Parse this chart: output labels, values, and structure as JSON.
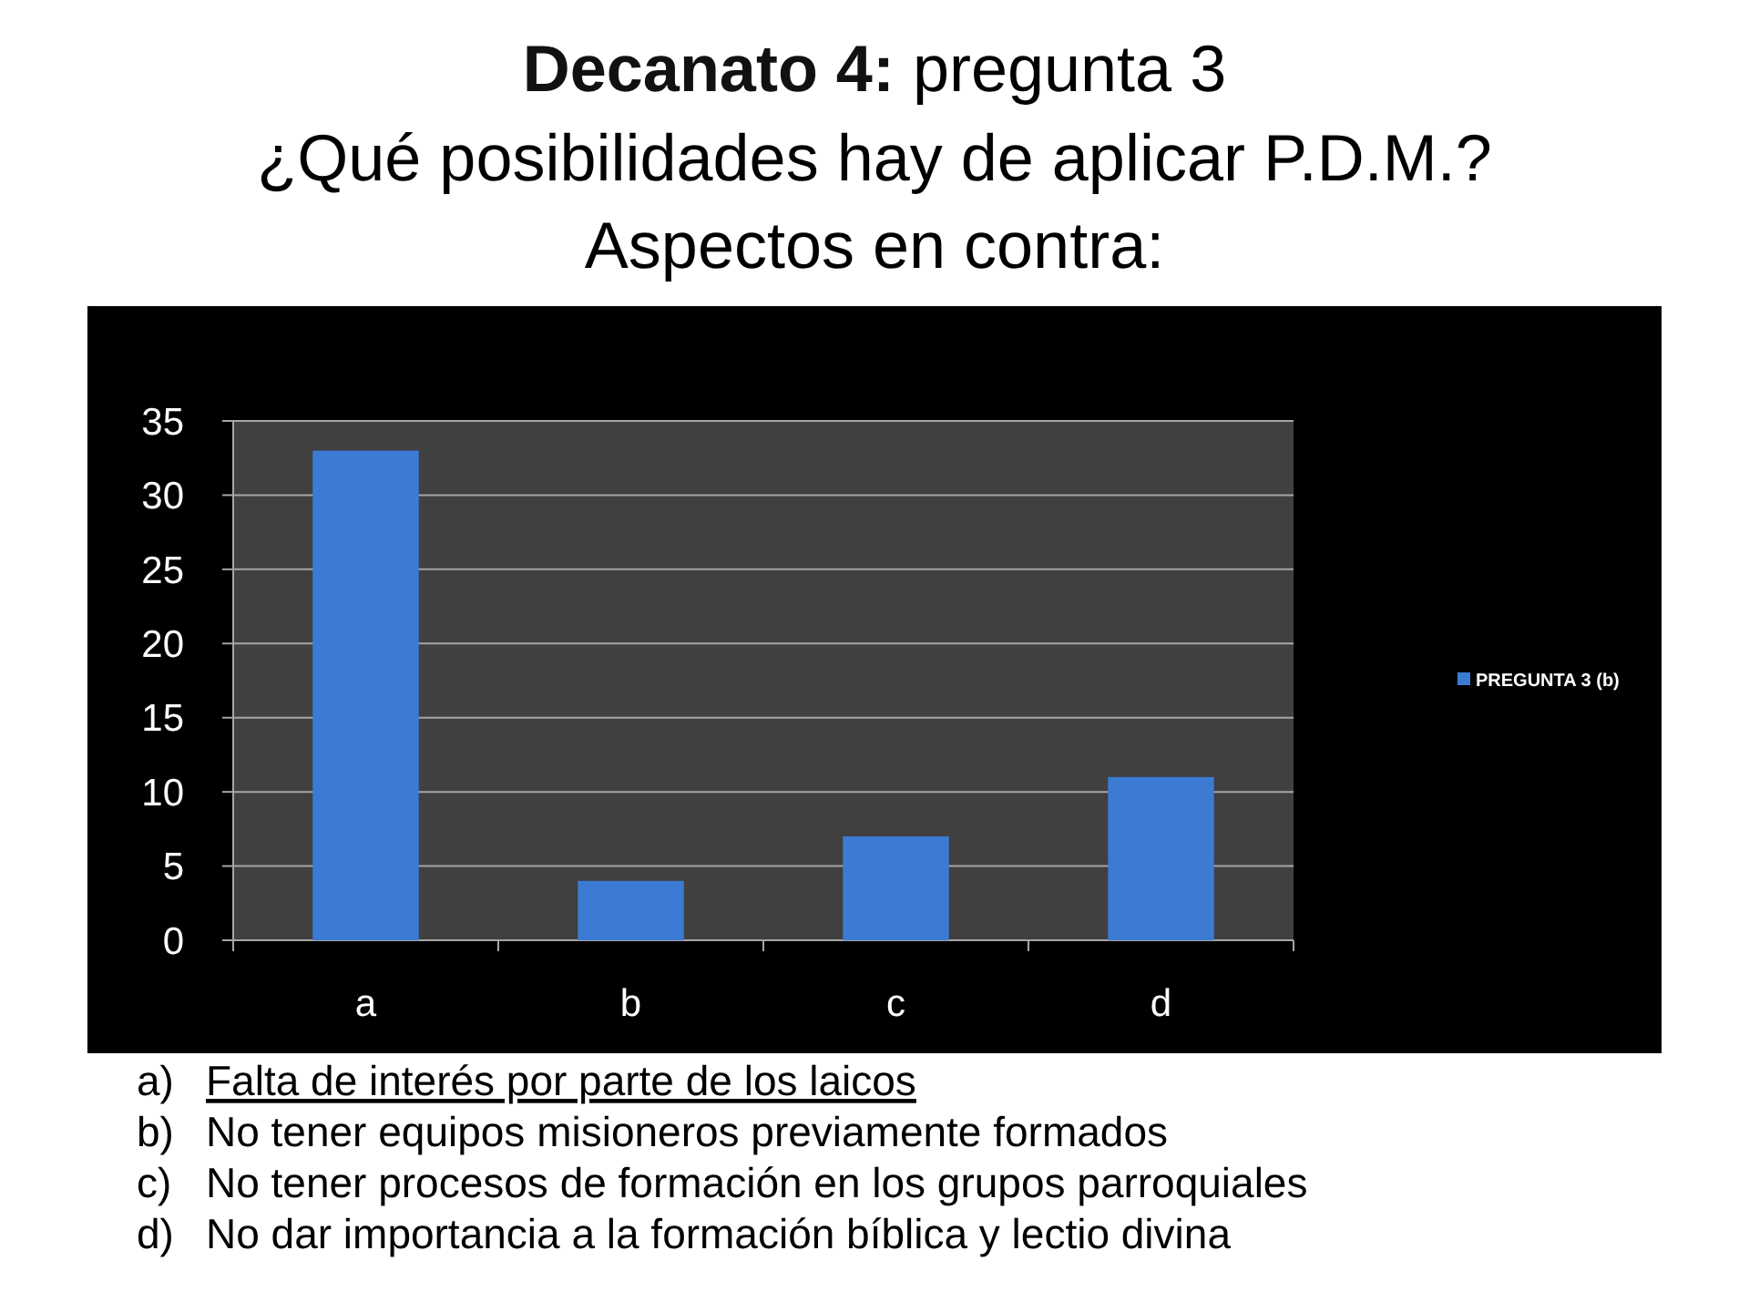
{
  "chart_data": {
    "type": "bar",
    "title": "Decanato 4: pregunta 3",
    "subtitle": "¿Qué posibilidades hay de aplicar P.D.M.?\nAspectos en contra:",
    "categories": [
      "a",
      "b",
      "c",
      "d"
    ],
    "series": [
      {
        "name": "PREGUNTA 3 (b)",
        "color": "#3b7bd4",
        "values": [
          33,
          4,
          7,
          11
        ]
      }
    ],
    "ylim": [
      0,
      35
    ],
    "yticks": [
      0,
      5,
      10,
      15,
      20,
      25,
      30,
      35
    ],
    "grid": "y",
    "legend": "right",
    "annotations": [
      "a) Falta de interés por parte de los laicos",
      "b) No tener equipos misioneros previamente formados",
      "c) No tener procesos de formación en los grupos parroquiales",
      "d) No dar importancia a la formación bíblica y lectio divina"
    ]
  }
}
